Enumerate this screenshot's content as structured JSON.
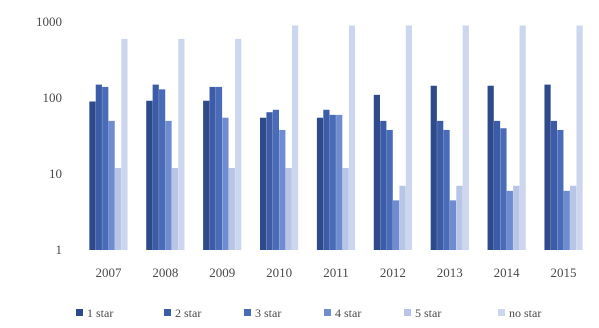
{
  "chart_data": {
    "type": "bar",
    "scale": "log",
    "ylim": [
      1,
      1000
    ],
    "yticks": [
      1,
      10,
      100,
      1000
    ],
    "grid": false,
    "legend_position": "bottom",
    "categories": [
      "2007",
      "2008",
      "2009",
      "2010",
      "2011",
      "2012",
      "2013",
      "2014",
      "2015"
    ],
    "series": [
      {
        "name": "1 star",
        "color": "#2f4a8a",
        "values": [
          90,
          92,
          92,
          55,
          55,
          110,
          145,
          145,
          150
        ]
      },
      {
        "name": "2 star",
        "color": "#3c5ca8",
        "values": [
          150,
          150,
          140,
          65,
          70,
          50,
          50,
          50,
          50
        ]
      },
      {
        "name": "3 star",
        "color": "#4a6cb8",
        "values": [
          140,
          130,
          140,
          70,
          60,
          38,
          38,
          40,
          38
        ]
      },
      {
        "name": "4 star",
        "color": "#6f8cd0",
        "values": [
          50,
          50,
          55,
          38,
          60,
          4.5,
          4.5,
          6,
          6
        ]
      },
      {
        "name": "5 star",
        "color": "#b8c5e6",
        "values": [
          12,
          12,
          12,
          12,
          12,
          7,
          7,
          7,
          7
        ]
      },
      {
        "name": "no star",
        "color": "#cdd6ef",
        "values": [
          600,
          600,
          600,
          900,
          900,
          900,
          900,
          900,
          900
        ]
      }
    ]
  }
}
